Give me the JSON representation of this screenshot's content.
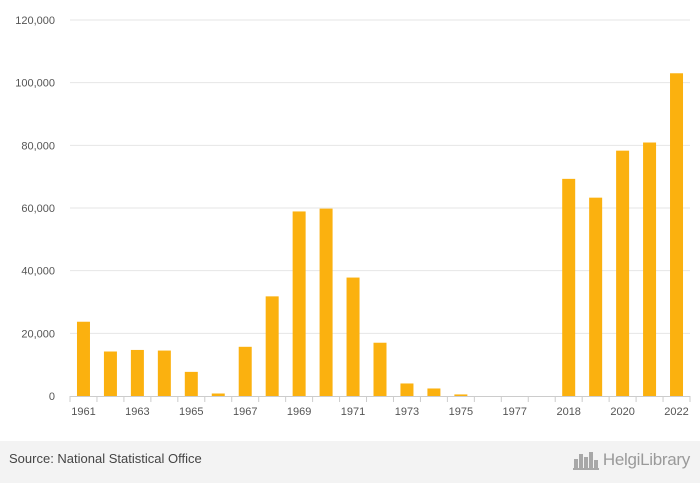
{
  "colors": {
    "bar": "#FBB10F",
    "grid": "#E6E6E6",
    "axis": "#CCCCCC",
    "text": "#555555"
  },
  "chart_data": {
    "type": "bar",
    "categories": [
      "1961",
      "1962",
      "1963",
      "1964",
      "1965",
      "1966",
      "1967",
      "1968",
      "1969",
      "1970",
      "1971",
      "1972",
      "1973",
      "1974",
      "1975",
      "1976",
      "1977",
      "1978",
      "2018",
      "2019",
      "2020",
      "2021",
      "2022"
    ],
    "values": [
      23700,
      14200,
      14700,
      14500,
      7700,
      800,
      15700,
      31800,
      58900,
      59800,
      37800,
      17000,
      4000,
      2400,
      500,
      0,
      0,
      0,
      69300,
      63300,
      78300,
      80900,
      103000
    ],
    "x_tick_labels": [
      "1961",
      "1963",
      "1965",
      "1967",
      "1969",
      "1971",
      "1973",
      "1975",
      "1977",
      "2018",
      "2020",
      "2022"
    ],
    "y_ticks": [
      0,
      20000,
      40000,
      60000,
      80000,
      100000,
      120000
    ],
    "y_tick_labels": [
      "0",
      "20,000",
      "40,000",
      "60,000",
      "80,000",
      "100,000",
      "120,000"
    ],
    "ylim": [
      0,
      120000
    ],
    "title": "",
    "xlabel": "",
    "ylabel": "",
    "grid": true,
    "legend": "none"
  },
  "footer": {
    "source": "Source: National Statistical Office",
    "brand": "HelgiLibrary",
    "brand_icon": "city-skyline-icon"
  }
}
